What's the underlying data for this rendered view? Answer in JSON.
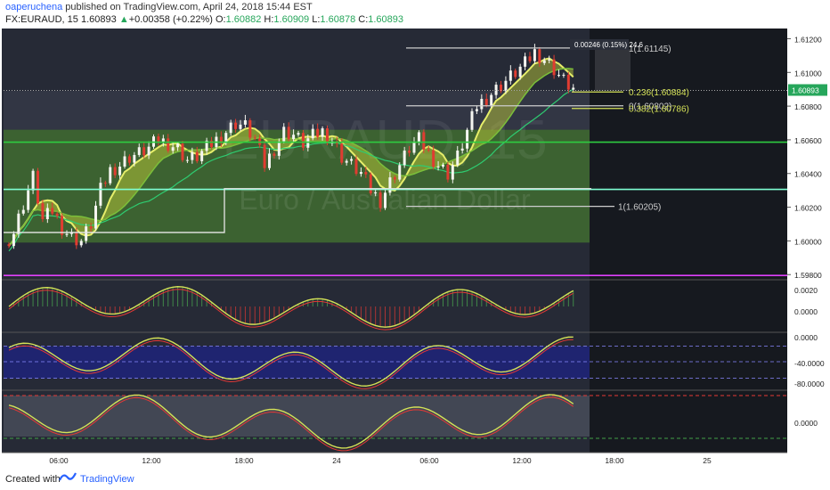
{
  "header": {
    "author": "oaperuchena",
    "published": " published on TradingView.com, April 24, 2018 15:44 EST",
    "symbol": "FX:EURAUD, 15",
    "price": "1.60893",
    "change": "+0.00358 (+0.22%)",
    "o_label": "O:",
    "o_val": "1.60882",
    "h_label": "H:",
    "h_val": "1.60909",
    "l_label": "L:",
    "l_val": "1.60878",
    "c_label": "C:",
    "c_val": "1.60893",
    "change_arrow": "▲"
  },
  "watermark": {
    "ticker": "EURAUD, 15",
    "name": "Euro / Australian Dollar"
  },
  "footer": {
    "created_with": "Created with",
    "brand": "TradingView"
  },
  "colors": {
    "background": "#1e222d",
    "up": "#f5f5f0",
    "down": "#e03c31",
    "green_zone": "#4f8f2d",
    "green_line": "#2ecc40",
    "magenta_line": "#e040fb",
    "cyan_line": "#7fffd4",
    "fib_yellow": "#d4e157",
    "rsi_band": "#1f237a"
  },
  "chart_data": [
    {
      "type": "candlestick",
      "panel": "price",
      "x_ticks": [
        "06:00",
        "12:00",
        "18:00",
        "24",
        "06:00",
        "12:00",
        "18:00",
        "25"
      ],
      "y_ticks": [
        "1.61200",
        "1.61000",
        "1.60800",
        "1.60600",
        "1.60400",
        "1.60200",
        "1.60000",
        "1.59800"
      ],
      "ylim": [
        1.5978,
        1.6125
      ],
      "close_path": [
        1.5998,
        1.6005,
        1.6022,
        1.6038,
        1.6012,
        1.6018,
        1.6008,
        1.6002,
        1.6,
        1.601,
        1.603,
        1.6042,
        1.6045,
        1.605,
        1.6052,
        1.6055,
        1.606,
        1.6058,
        1.6055,
        1.6048,
        1.605,
        1.6055,
        1.606,
        1.6065,
        1.607,
        1.6068,
        1.606,
        1.6045,
        1.6055,
        1.6065,
        1.6063,
        1.6058,
        1.6062,
        1.6065,
        1.606,
        1.605,
        1.6045,
        1.604,
        1.603,
        1.6024,
        1.6035,
        1.6045,
        1.6055,
        1.606,
        1.6052,
        1.6045,
        1.604,
        1.605,
        1.6065,
        1.608,
        1.6085,
        1.609,
        1.6095,
        1.61,
        1.6105,
        1.6112,
        1.6108,
        1.6102,
        1.6095,
        1.609
      ],
      "horizontal_lines": [
        {
          "value": 1.60586,
          "color": "green"
        },
        {
          "value": 1.60306,
          "color": "cyan"
        },
        {
          "value": 1.59795,
          "color": "magenta"
        }
      ],
      "fib_labels": [
        {
          "text": "1(1.61145)",
          "value": 1.61145
        },
        {
          "text": "0.236(1.60884)",
          "value": 1.60884
        },
        {
          "text": "0(1.60802)",
          "value": 1.60802
        },
        {
          "text": "0.382(1.60786)",
          "value": 1.60786
        },
        {
          "text": "1(1.60205)",
          "value": 1.60205
        }
      ],
      "measure_label": "0.00246 (0.15%) 24.6",
      "last_price": "1.60893"
    },
    {
      "type": "histogram",
      "panel": "macd",
      "y_ticks": [
        "0.0020",
        "0.0000"
      ],
      "ylim": [
        -0.0015,
        0.0028
      ]
    },
    {
      "type": "line",
      "panel": "williams_r",
      "y_ticks": [
        "0.0000",
        "-40.0000",
        "-80.0000"
      ],
      "ylim": [
        -100,
        0
      ],
      "band": [
        -20,
        -80
      ]
    },
    {
      "type": "line",
      "panel": "oscillator",
      "y_ticks": [
        "0.0000"
      ]
    }
  ]
}
